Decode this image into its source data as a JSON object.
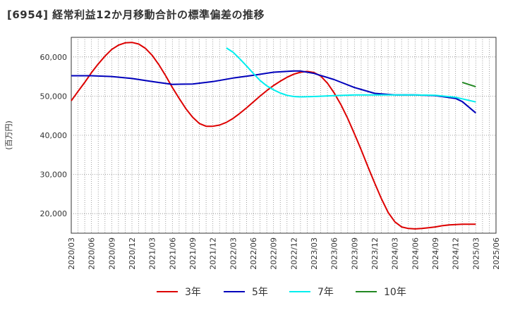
{
  "chart_data": {
    "type": "line",
    "title": "[6954]  経常利益12か月移動合計の標準偏差の推移",
    "ylabel": "(百万円)",
    "ylim": [
      15000,
      65000
    ],
    "yticks": [
      20000,
      30000,
      40000,
      50000,
      60000
    ],
    "ytick_labels": [
      "20,000",
      "30,000",
      "40,000",
      "50,000",
      "60,000"
    ],
    "x_start": "2020/03",
    "x_ticks": [
      "2020/03",
      "2020/06",
      "2020/09",
      "2020/12",
      "2021/03",
      "2021/06",
      "2021/09",
      "2021/12",
      "2022/03",
      "2022/06",
      "2022/09",
      "2022/12",
      "2023/03",
      "2023/06",
      "2023/09",
      "2023/12",
      "2024/03",
      "2024/06",
      "2024/09",
      "2024/12",
      "2025/03",
      "2025/06"
    ],
    "grid": true,
    "legend_position": "bottom",
    "series": [
      {
        "name": "3年",
        "color": "#dd0000",
        "points": [
          [
            "2020/03",
            48800
          ],
          [
            "2020/04",
            51200
          ],
          [
            "2020/05",
            53500
          ],
          [
            "2020/06",
            56000
          ],
          [
            "2020/07",
            58200
          ],
          [
            "2020/08",
            60200
          ],
          [
            "2020/09",
            61900
          ],
          [
            "2020/10",
            63000
          ],
          [
            "2020/11",
            63600
          ],
          [
            "2020/12",
            63700
          ],
          [
            "2021/01",
            63300
          ],
          [
            "2021/02",
            62200
          ],
          [
            "2021/03",
            60400
          ],
          [
            "2021/04",
            58000
          ],
          [
            "2021/05",
            55200
          ],
          [
            "2021/06",
            52200
          ],
          [
            "2021/07",
            49400
          ],
          [
            "2021/08",
            46800
          ],
          [
            "2021/09",
            44600
          ],
          [
            "2021/10",
            43000
          ],
          [
            "2021/11",
            42300
          ],
          [
            "2021/12",
            42300
          ],
          [
            "2021/13",
            42600
          ],
          [
            "2022/02",
            43300
          ],
          [
            "2022/03",
            44300
          ],
          [
            "2022/04",
            45600
          ],
          [
            "2022/05",
            47000
          ],
          [
            "2022/06",
            48500
          ],
          [
            "2022/07",
            50000
          ],
          [
            "2022/08",
            51400
          ],
          [
            "2022/09",
            52700
          ],
          [
            "2022/10",
            53800
          ],
          [
            "2022/11",
            54800
          ],
          [
            "2022/12",
            55600
          ],
          [
            "2023/01",
            56100
          ],
          [
            "2023/02",
            56300
          ],
          [
            "2023/03",
            56000
          ],
          [
            "2023/04",
            55100
          ],
          [
            "2023/05",
            53300
          ],
          [
            "2023/06",
            50800
          ],
          [
            "2023/07",
            47800
          ],
          [
            "2023/08",
            44300
          ],
          [
            "2023/09",
            40400
          ],
          [
            "2023/10",
            36300
          ],
          [
            "2023/11",
            32000
          ],
          [
            "2023/12",
            27800
          ],
          [
            "2024/01",
            23800
          ],
          [
            "2024/02",
            20300
          ],
          [
            "2024/03",
            17900
          ],
          [
            "2024/04",
            16600
          ],
          [
            "2024/05",
            16200
          ],
          [
            "2024/06",
            16100
          ],
          [
            "2024/07",
            16200
          ],
          [
            "2024/08",
            16400
          ],
          [
            "2024/09",
            16600
          ],
          [
            "2024/10",
            16900
          ],
          [
            "2024/11",
            17100
          ],
          [
            "2024/12",
            17200
          ],
          [
            "2025/01",
            17300
          ],
          [
            "2025/02",
            17300
          ],
          [
            "2025/03",
            17300
          ]
        ]
      },
      {
        "name": "5年",
        "color": "#0000bb",
        "points": [
          [
            "2020/03",
            55200
          ],
          [
            "2020/06",
            55200
          ],
          [
            "2020/09",
            55000
          ],
          [
            "2020/12",
            54500
          ],
          [
            "2021/03",
            53700
          ],
          [
            "2021/06",
            53000
          ],
          [
            "2021/09",
            53100
          ],
          [
            "2021/12",
            53700
          ],
          [
            "2022/03",
            54600
          ],
          [
            "2022/06",
            55300
          ],
          [
            "2022/09",
            56100
          ],
          [
            "2022/12",
            56400
          ],
          [
            "2023/01",
            56400
          ],
          [
            "2023/03",
            55800
          ],
          [
            "2023/06",
            54200
          ],
          [
            "2023/09",
            52200
          ],
          [
            "2023/12",
            50700
          ],
          [
            "2024/03",
            50300
          ],
          [
            "2024/06",
            50300
          ],
          [
            "2024/09",
            50100
          ],
          [
            "2024/12",
            49400
          ],
          [
            "2025/01",
            48600
          ],
          [
            "2025/03",
            45700
          ]
        ]
      },
      {
        "name": "7年",
        "color": "#00eeee",
        "points": [
          [
            "2022/02",
            62300
          ],
          [
            "2022/03",
            61200
          ],
          [
            "2022/04",
            59500
          ],
          [
            "2022/05",
            57700
          ],
          [
            "2022/06",
            55800
          ],
          [
            "2022/07",
            54000
          ],
          [
            "2022/08",
            52600
          ],
          [
            "2022/09",
            51600
          ],
          [
            "2022/10",
            50800
          ],
          [
            "2022/11",
            50200
          ],
          [
            "2022/12",
            49900
          ],
          [
            "2023/01",
            49800
          ],
          [
            "2023/03",
            49900
          ],
          [
            "2023/06",
            50100
          ],
          [
            "2023/09",
            50300
          ],
          [
            "2023/12",
            50300
          ],
          [
            "2024/03",
            50300
          ],
          [
            "2024/06",
            50300
          ],
          [
            "2024/09",
            50200
          ],
          [
            "2024/12",
            49700
          ],
          [
            "2025/01",
            49300
          ],
          [
            "2025/03",
            48500
          ]
        ]
      },
      {
        "name": "10年",
        "color": "#228822",
        "points": [
          [
            "2025/01",
            53500
          ],
          [
            "2025/03",
            52400
          ]
        ]
      }
    ]
  }
}
